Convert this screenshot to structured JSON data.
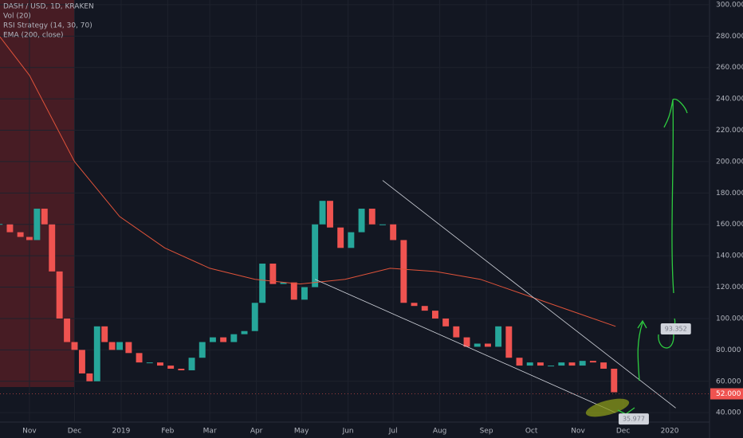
{
  "chart_data": {
    "type": "candlestick",
    "legend": [
      "DASH / USD, 1D, KRAKEN",
      "Vol (20)",
      "RSI Strategy (14, 30, 70)",
      "EMA (200, close)"
    ],
    "x": [
      -20,
      -13,
      -6,
      0,
      5,
      10,
      15,
      20,
      25,
      30,
      35,
      40,
      45,
      50,
      55,
      60,
      66,
      73,
      80,
      87,
      94,
      101,
      108,
      115,
      122,
      129,
      136,
      143,
      150,
      155,
      162,
      169,
      176,
      183,
      190,
      195,
      200,
      207,
      214,
      221,
      228,
      235,
      242,
      249,
      256,
      263,
      270,
      277,
      284,
      291,
      298,
      305,
      312,
      319,
      326,
      333,
      340,
      347,
      354,
      361,
      368,
      375,
      382,
      389
    ],
    "series": [
      {
        "name": "DASH / USD",
        "values": [
          160,
          155,
          152,
          150,
          170,
          160,
          130,
          100,
          85,
          80,
          65,
          60,
          95,
          85,
          80,
          85,
          78,
          72,
          72,
          70,
          68,
          67,
          75,
          85,
          88,
          85,
          90,
          92,
          110,
          135,
          122,
          123,
          112,
          120,
          160,
          175,
          158,
          145,
          155,
          170,
          160,
          160,
          150,
          110,
          108,
          105,
          100,
          95,
          88,
          82,
          84,
          82,
          95,
          75,
          70,
          72,
          70,
          70,
          72,
          70,
          73,
          72,
          68,
          53
        ]
      },
      {
        "name": "EMA (200, close)",
        "color": "#e0533a",
        "x": [
          -20,
          0,
          30,
          60,
          90,
          120,
          150,
          180,
          210,
          240,
          270,
          300,
          330,
          360,
          390
        ],
        "values": [
          280,
          255,
          200,
          165,
          145,
          132,
          125,
          122,
          125,
          132,
          130,
          125,
          115,
          105,
          95
        ]
      }
    ],
    "up_color": "#26a69a",
    "down_color": "#ef5350",
    "trendlines": [
      {
        "x": [
          235,
          430
        ],
        "y": [
          188,
          43
        ]
      },
      {
        "x": [
          190,
          390
        ],
        "y": [
          125,
          40
        ]
      }
    ],
    "price_tags": [
      {
        "x": 420,
        "value": 93.352
      },
      {
        "x": 392,
        "value": 35.977
      }
    ],
    "last_price": {
      "value": 52,
      "label": "52.000"
    },
    "xlim": [
      -19.6,
      452.5
    ],
    "ylim": [
      34,
      303
    ],
    "xticks": [
      {
        "value": 0,
        "label": "Nov"
      },
      {
        "value": 30,
        "label": "Dec"
      },
      {
        "value": 61,
        "label": "2019"
      },
      {
        "value": 92,
        "label": "Feb"
      },
      {
        "value": 120,
        "label": "Mar"
      },
      {
        "value": 151,
        "label": "Apr"
      },
      {
        "value": 181,
        "label": "May"
      },
      {
        "value": 212,
        "label": "Jun"
      },
      {
        "value": 242,
        "label": "Jul"
      },
      {
        "value": 273,
        "label": "Aug"
      },
      {
        "value": 304,
        "label": "Sep"
      },
      {
        "value": 334,
        "label": "Oct"
      },
      {
        "value": 365,
        "label": "Nov"
      },
      {
        "value": 395,
        "label": "Dec"
      },
      {
        "value": 426,
        "label": "2020"
      }
    ],
    "yticks": [
      {
        "value": 40,
        "label": "40.000"
      },
      {
        "value": 60,
        "label": "60.000"
      },
      {
        "value": 80,
        "label": "80.000"
      },
      {
        "value": 100,
        "label": "100.000"
      },
      {
        "value": 120,
        "label": "120.000"
      },
      {
        "value": 140,
        "label": "140.000"
      },
      {
        "value": 160,
        "label": "160.000"
      },
      {
        "value": 180,
        "label": "180.000"
      },
      {
        "value": 200,
        "label": "200.000"
      },
      {
        "value": 220,
        "label": "220.000"
      },
      {
        "value": 240,
        "label": "240.000"
      },
      {
        "value": 260,
        "label": "260.000"
      },
      {
        "value": 280,
        "label": "280.000"
      },
      {
        "value": 300,
        "label": "300.000"
      }
    ],
    "grid": true
  }
}
